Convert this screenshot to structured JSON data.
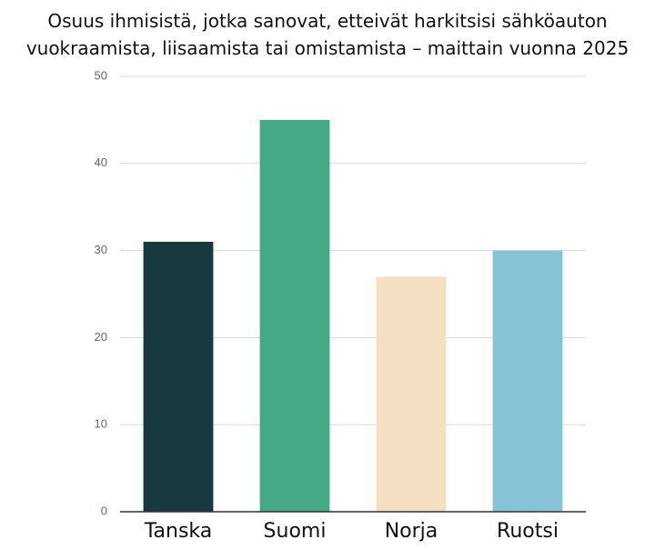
{
  "chart_data": {
    "type": "bar",
    "title": "Osuus ihmisistä, jotka sanovat, etteivät harkitsisi sähköauton vuokraamista, liisaamista tai omistamista – maittain vuonna 2025",
    "categories": [
      "Tanska",
      "Suomi",
      "Norja",
      "Ruotsi"
    ],
    "values": [
      31,
      45,
      27,
      30
    ],
    "colors": [
      "#18393d",
      "#45a986",
      "#f5dfc3",
      "#86c3d6"
    ],
    "ylim": [
      0,
      50
    ],
    "yticks": [
      0,
      10,
      20,
      30,
      40,
      50
    ],
    "grid": true
  }
}
